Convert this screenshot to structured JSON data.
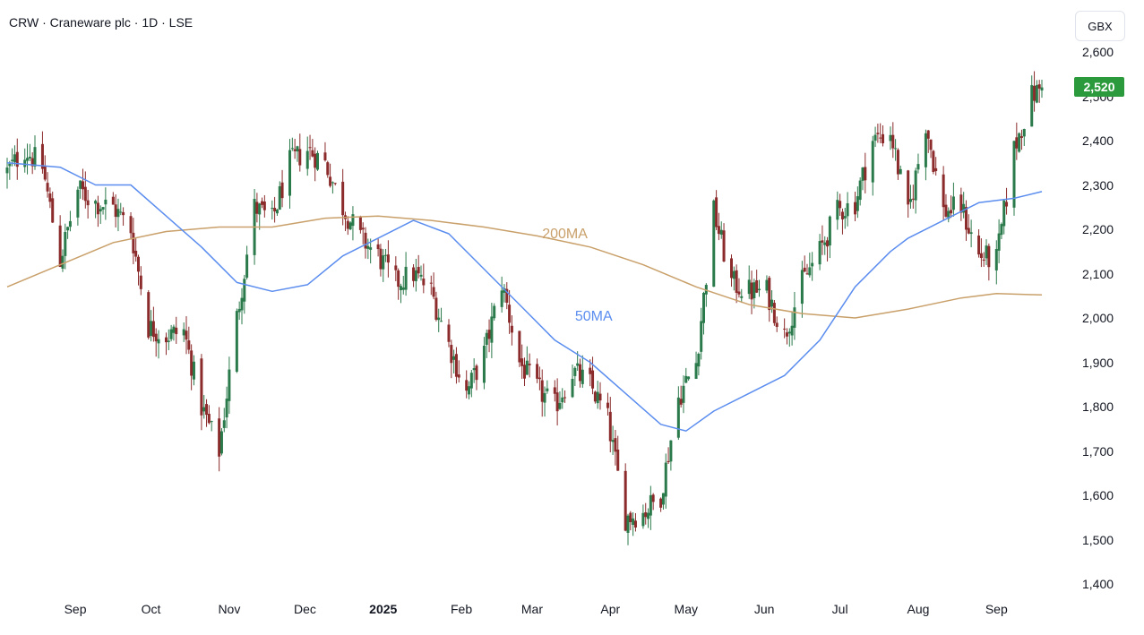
{
  "header": {
    "title": "CRW · Craneware plc · 1D · LSE",
    "currency": "GBX"
  },
  "last_price_label": "2,520",
  "colors": {
    "up": "#2b7a4b",
    "down": "#8b2b2b",
    "ma50": "#5b8def",
    "ma200": "#c9a06a",
    "price_badge": "#2b9a3c"
  },
  "chart_data": {
    "type": "candlestick",
    "ylim": [
      1380,
      2630
    ],
    "yticks": [
      1400,
      1500,
      1600,
      1700,
      1800,
      1900,
      2000,
      2100,
      2200,
      2300,
      2400,
      2500,
      2600
    ],
    "ytick_labels": [
      "1,400",
      "1,500",
      "1,600",
      "1,700",
      "1,800",
      "1,900",
      "2,000",
      "2,100",
      "2,200",
      "2,300",
      "2,400",
      "2,500",
      "2,600"
    ],
    "x_range": [
      "2024-08-05",
      "2025-09-19"
    ],
    "xticks": [
      {
        "label": "Sep",
        "date": "2024-09-01"
      },
      {
        "label": "Oct",
        "date": "2024-10-01"
      },
      {
        "label": "Nov",
        "date": "2024-11-01"
      },
      {
        "label": "Dec",
        "date": "2024-12-01"
      },
      {
        "label": "2025",
        "date": "2025-01-01",
        "bold": true
      },
      {
        "label": "Feb",
        "date": "2025-02-01"
      },
      {
        "label": "Mar",
        "date": "2025-03-01"
      },
      {
        "label": "Apr",
        "date": "2025-04-01"
      },
      {
        "label": "May",
        "date": "2025-05-01"
      },
      {
        "label": "Jun",
        "date": "2025-06-01"
      },
      {
        "label": "Jul",
        "date": "2025-07-01"
      },
      {
        "label": "Aug",
        "date": "2025-08-01"
      },
      {
        "label": "Sep",
        "date": "2025-09-01"
      }
    ],
    "last_close": 2520,
    "anchors": [
      [
        "2024-08-05",
        2330
      ],
      [
        "2024-08-12",
        2380
      ],
      [
        "2024-08-19",
        2340
      ],
      [
        "2024-08-26",
        2130
      ],
      [
        "2024-09-02",
        2290
      ],
      [
        "2024-09-09",
        2260
      ],
      [
        "2024-09-16",
        2250
      ],
      [
        "2024-09-23",
        2200
      ],
      [
        "2024-09-30",
        1980
      ],
      [
        "2024-10-07",
        1960
      ],
      [
        "2024-10-14",
        1970
      ],
      [
        "2024-10-21",
        1800
      ],
      [
        "2024-10-28",
        1700
      ],
      [
        "2024-11-04",
        2000
      ],
      [
        "2024-11-11",
        2250
      ],
      [
        "2024-11-18",
        2220
      ],
      [
        "2024-11-25",
        2350
      ],
      [
        "2024-12-02",
        2380
      ],
      [
        "2024-12-09",
        2350
      ],
      [
        "2024-12-16",
        2250
      ],
      [
        "2024-12-23",
        2180
      ],
      [
        "2024-12-30",
        2140
      ],
      [
        "2025-01-06",
        2080
      ],
      [
        "2025-01-13",
        2100
      ],
      [
        "2025-01-20",
        2060
      ],
      [
        "2025-01-27",
        1940
      ],
      [
        "2025-02-03",
        1830
      ],
      [
        "2025-02-10",
        1920
      ],
      [
        "2025-02-17",
        2080
      ],
      [
        "2025-02-24",
        1900
      ],
      [
        "2025-03-03",
        1840
      ],
      [
        "2025-03-10",
        1800
      ],
      [
        "2025-03-17",
        1880
      ],
      [
        "2025-03-24",
        1850
      ],
      [
        "2025-03-31",
        1770
      ],
      [
        "2025-04-07",
        1550
      ],
      [
        "2025-04-14",
        1560
      ],
      [
        "2025-04-21",
        1600
      ],
      [
        "2025-04-28",
        1820
      ],
      [
        "2025-05-05",
        1900
      ],
      [
        "2025-05-12",
        2240
      ],
      [
        "2025-05-19",
        2080
      ],
      [
        "2025-05-26",
        2060
      ],
      [
        "2025-06-02",
        2060
      ],
      [
        "2025-06-09",
        1960
      ],
      [
        "2025-06-16",
        2080
      ],
      [
        "2025-06-23",
        2150
      ],
      [
        "2025-06-30",
        2240
      ],
      [
        "2025-07-07",
        2260
      ],
      [
        "2025-07-14",
        2400
      ],
      [
        "2025-07-21",
        2420
      ],
      [
        "2025-07-28",
        2230
      ],
      [
        "2025-08-04",
        2440
      ],
      [
        "2025-08-11",
        2240
      ],
      [
        "2025-08-18",
        2250
      ],
      [
        "2025-08-25",
        2140
      ],
      [
        "2025-09-01",
        2130
      ],
      [
        "2025-09-08",
        2380
      ],
      [
        "2025-09-15",
        2500
      ],
      [
        "2025-09-19",
        2520
      ]
    ],
    "ma50": [
      [
        "2024-08-05",
        2350
      ],
      [
        "2024-08-26",
        2340
      ],
      [
        "2024-09-09",
        2300
      ],
      [
        "2024-09-23",
        2300
      ],
      [
        "2024-10-07",
        2230
      ],
      [
        "2024-10-21",
        2160
      ],
      [
        "2024-11-04",
        2080
      ],
      [
        "2024-11-18",
        2060
      ],
      [
        "2024-12-02",
        2075
      ],
      [
        "2024-12-16",
        2140
      ],
      [
        "2024-12-30",
        2180
      ],
      [
        "2025-01-13",
        2220
      ],
      [
        "2025-01-27",
        2190
      ],
      [
        "2025-02-10",
        2110
      ],
      [
        "2025-02-24",
        2030
      ],
      [
        "2025-03-10",
        1950
      ],
      [
        "2025-03-24",
        1900
      ],
      [
        "2025-04-07",
        1830
      ],
      [
        "2025-04-21",
        1760
      ],
      [
        "2025-05-01",
        1745
      ],
      [
        "2025-05-12",
        1790
      ],
      [
        "2025-05-26",
        1830
      ],
      [
        "2025-06-09",
        1870
      ],
      [
        "2025-06-23",
        1950
      ],
      [
        "2025-07-07",
        2070
      ],
      [
        "2025-07-21",
        2150
      ],
      [
        "2025-07-28",
        2180
      ],
      [
        "2025-08-11",
        2220
      ],
      [
        "2025-08-25",
        2260
      ],
      [
        "2025-09-08",
        2270
      ],
      [
        "2025-09-19",
        2285
      ]
    ],
    "ma200": [
      [
        "2024-08-05",
        2070
      ],
      [
        "2024-08-26",
        2120
      ],
      [
        "2024-09-16",
        2170
      ],
      [
        "2024-10-07",
        2195
      ],
      [
        "2024-10-28",
        2205
      ],
      [
        "2024-11-18",
        2205
      ],
      [
        "2024-12-09",
        2225
      ],
      [
        "2024-12-30",
        2230
      ],
      [
        "2025-01-20",
        2220
      ],
      [
        "2025-02-10",
        2205
      ],
      [
        "2025-03-03",
        2185
      ],
      [
        "2025-03-24",
        2160
      ],
      [
        "2025-04-14",
        2120
      ],
      [
        "2025-05-05",
        2070
      ],
      [
        "2025-05-26",
        2030
      ],
      [
        "2025-06-16",
        2010
      ],
      [
        "2025-07-07",
        2000
      ],
      [
        "2025-07-28",
        2020
      ],
      [
        "2025-08-18",
        2045
      ],
      [
        "2025-09-01",
        2055
      ],
      [
        "2025-09-19",
        2052
      ]
    ],
    "annotations": [
      {
        "text": "200MA",
        "date": "2025-03-05",
        "price": 2185,
        "color": "#c9a06a"
      },
      {
        "text": "50MA",
        "date": "2025-03-18",
        "price": 2000,
        "color": "#5b8def"
      }
    ]
  }
}
